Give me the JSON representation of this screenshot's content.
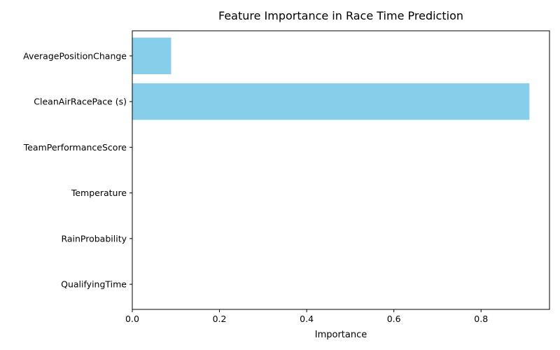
{
  "chart_data": {
    "type": "bar",
    "orientation": "horizontal",
    "title": "Feature Importance in Race Time Prediction",
    "xlabel": "Importance",
    "ylabel": "",
    "categories": [
      "AveragePositionChange",
      "CleanAirRacePace (s)",
      "TeamPerformanceScore",
      "Temperature",
      "RainProbability",
      "QualifyingTime"
    ],
    "values": [
      0.089,
      0.911,
      0.0,
      0.0,
      0.0,
      0.0
    ],
    "xlim": [
      0,
      0.957
    ],
    "xticks": [
      0.0,
      0.2,
      0.4,
      0.6,
      0.8
    ],
    "xtick_labels": [
      "0.0",
      "0.2",
      "0.4",
      "0.6",
      "0.8"
    ],
    "grid": false,
    "legend": "none",
    "bar_color": "#87ceeb"
  }
}
